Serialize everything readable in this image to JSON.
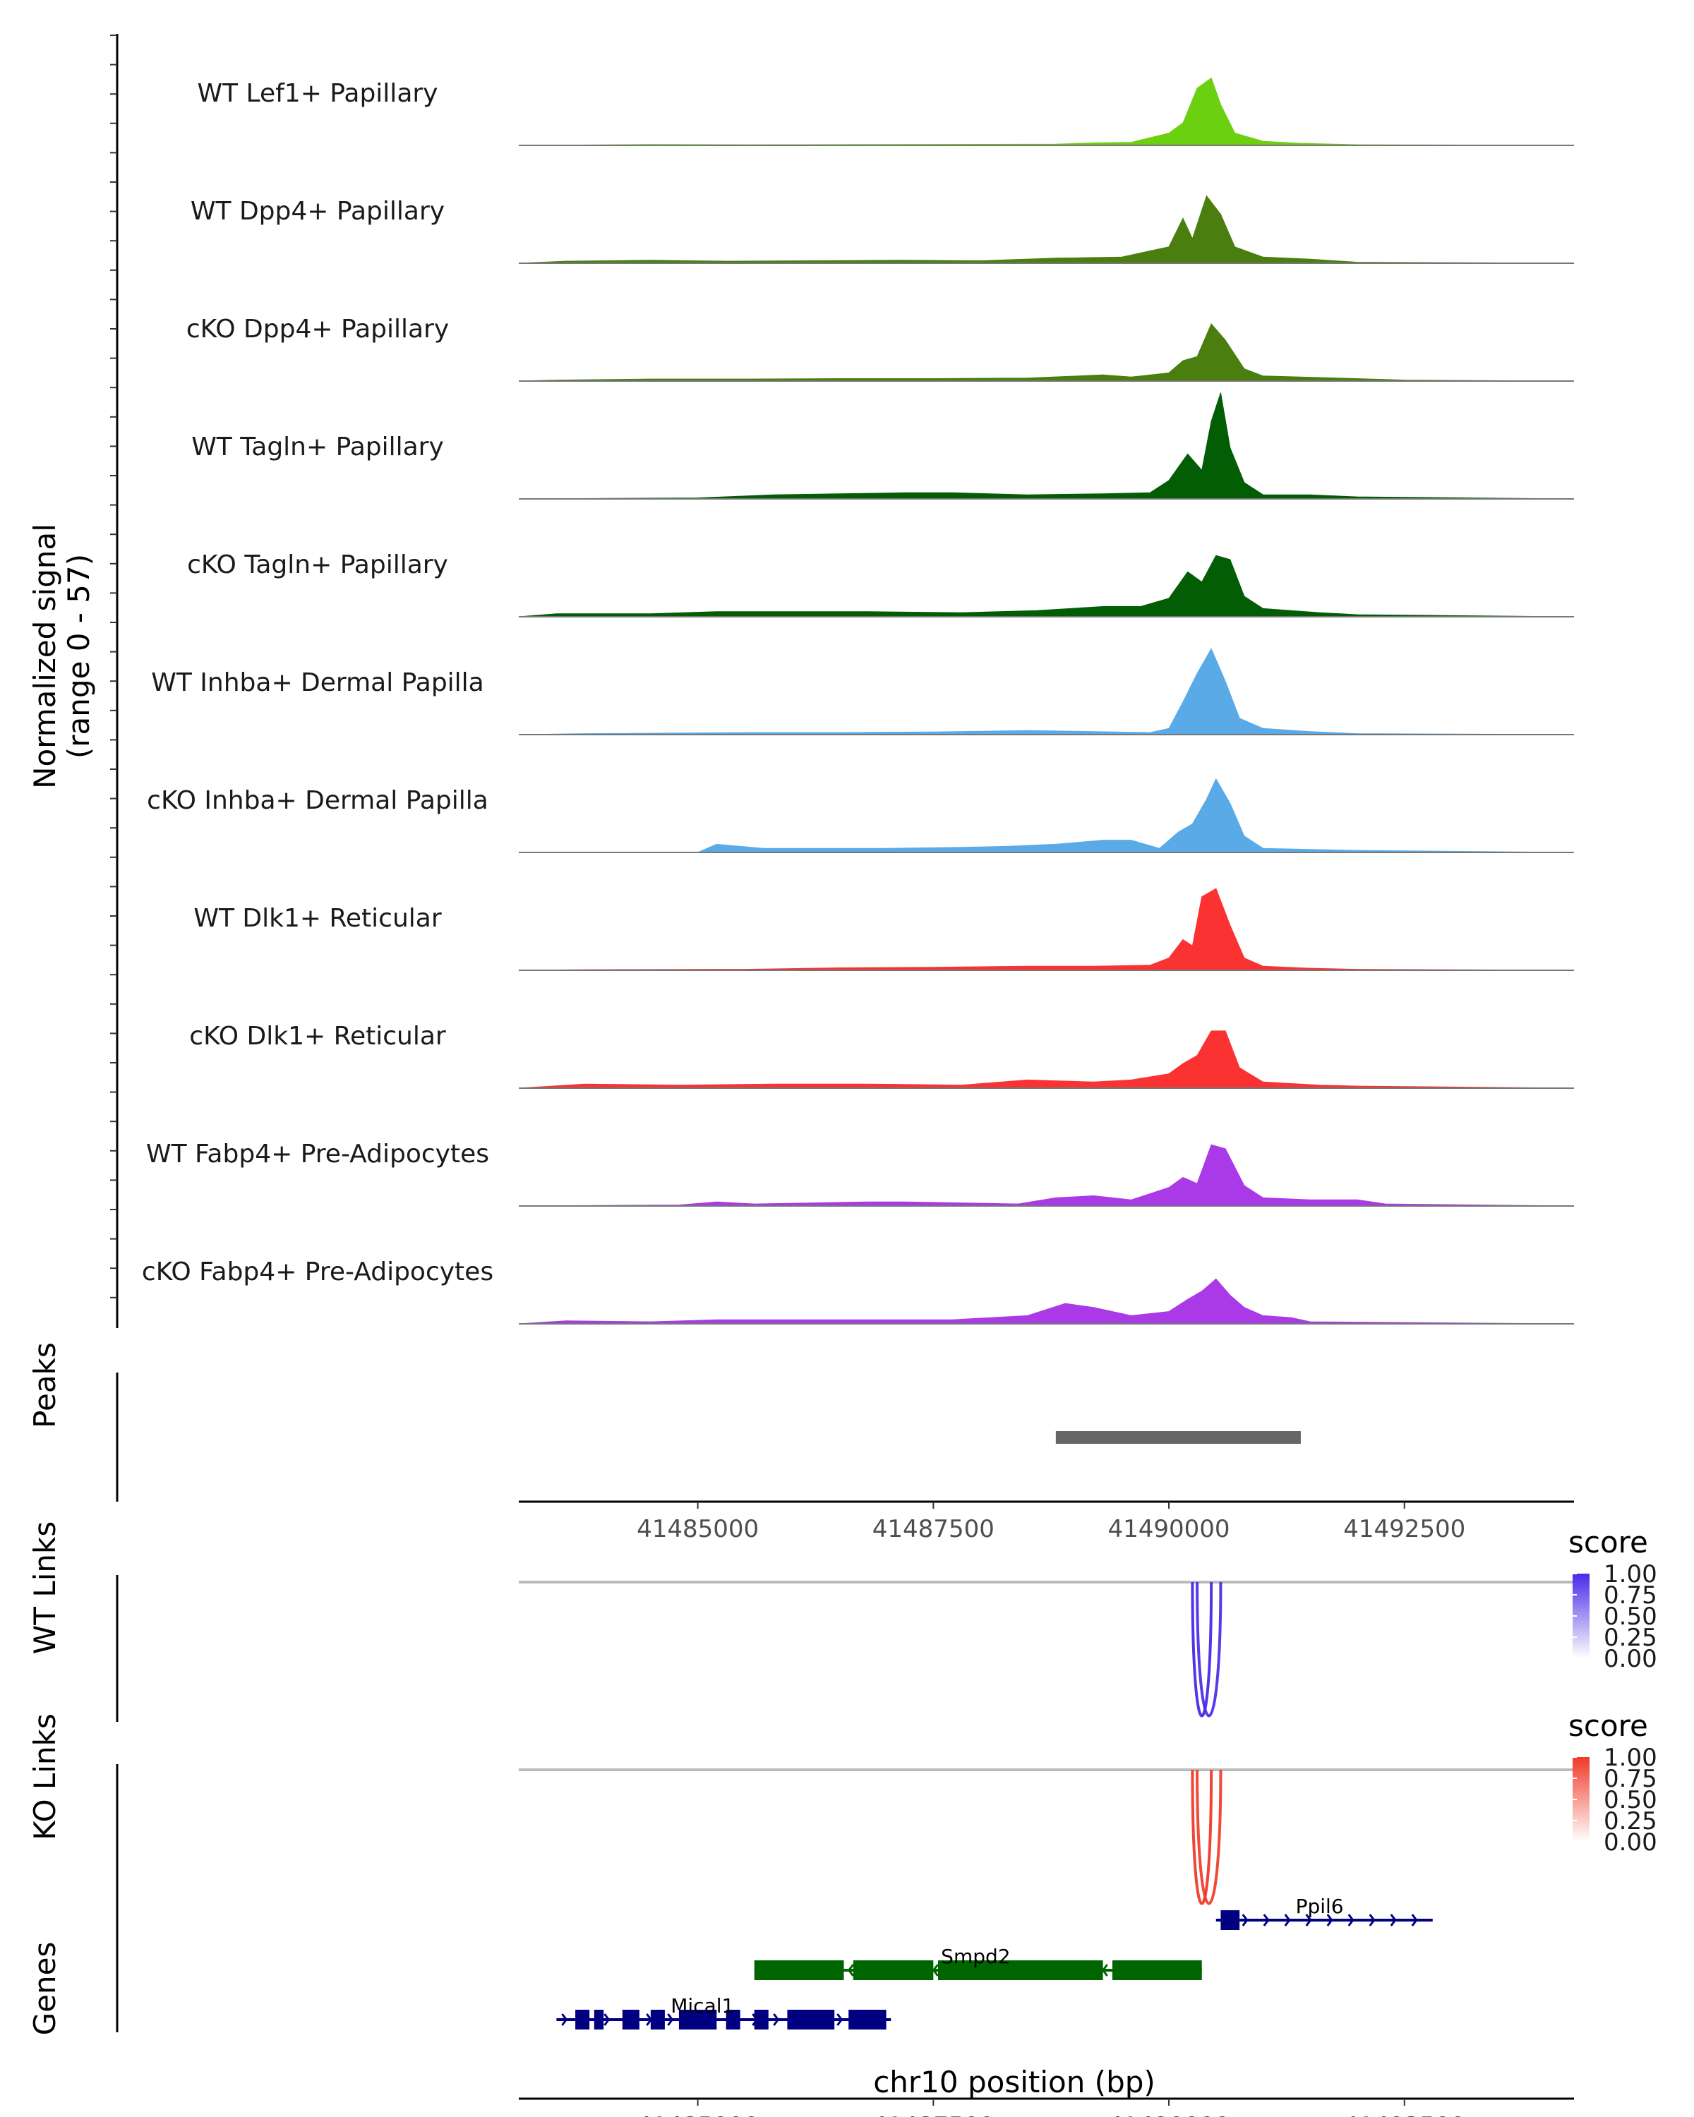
{
  "chart_data": {
    "type": "area",
    "region": "chr10",
    "x_range": [
      41483100,
      41494300
    ],
    "xlabel": "chr10 position (bp)",
    "x_ticks": [
      {
        "value": 41485000,
        "label": "41485000"
      },
      {
        "value": 41487500,
        "label": "41487500"
      },
      {
        "value": 41490000,
        "label": "41490000"
      },
      {
        "value": 41492500,
        "label": "41492500"
      }
    ],
    "coverage_ylabel_line1": "Normalized signal",
    "coverage_ylabel_line2": "(range 0 - 57)",
    "y_range": [
      0,
      57
    ],
    "tracks": [
      {
        "name": "WT Lef1+ Papillary",
        "color": "#6ad010",
        "points": [
          [
            41483100,
            0
          ],
          [
            41484500,
            0.4
          ],
          [
            41485500,
            0.3
          ],
          [
            41487000,
            0.4
          ],
          [
            41488800,
            0.6
          ],
          [
            41489200,
            1.2
          ],
          [
            41489600,
            1.5
          ],
          [
            41490000,
            6
          ],
          [
            41490150,
            11
          ],
          [
            41490300,
            28
          ],
          [
            41490450,
            33
          ],
          [
            41490550,
            20
          ],
          [
            41490700,
            6
          ],
          [
            41491000,
            2
          ],
          [
            41491400,
            1
          ],
          [
            41492000,
            0.3
          ],
          [
            41494300,
            0
          ]
        ]
      },
      {
        "name": "WT Dpp4+ Papillary",
        "color": "#4a7f10",
        "points": [
          [
            41483100,
            0
          ],
          [
            41483600,
            1
          ],
          [
            41484500,
            1.5
          ],
          [
            41485300,
            1
          ],
          [
            41486500,
            1.3
          ],
          [
            41487200,
            1.5
          ],
          [
            41488000,
            1.2
          ],
          [
            41488800,
            2.5
          ],
          [
            41489500,
            3
          ],
          [
            41490000,
            8
          ],
          [
            41490150,
            22
          ],
          [
            41490250,
            12
          ],
          [
            41490400,
            33
          ],
          [
            41490550,
            24
          ],
          [
            41490700,
            8
          ],
          [
            41491000,
            3
          ],
          [
            41491500,
            2
          ],
          [
            41492000,
            0.5
          ],
          [
            41494300,
            0
          ]
        ]
      },
      {
        "name": "cKO Dpp4+ Papillary",
        "color": "#4a7f10",
        "points": [
          [
            41483100,
            0
          ],
          [
            41483500,
            0.5
          ],
          [
            41484500,
            1
          ],
          [
            41485500,
            1
          ],
          [
            41486500,
            1.2
          ],
          [
            41487500,
            1.2
          ],
          [
            41488500,
            1.5
          ],
          [
            41489300,
            3
          ],
          [
            41489600,
            2
          ],
          [
            41490000,
            4
          ],
          [
            41490150,
            10
          ],
          [
            41490300,
            12
          ],
          [
            41490450,
            28
          ],
          [
            41490600,
            20
          ],
          [
            41490800,
            6
          ],
          [
            41491000,
            2.5
          ],
          [
            41491800,
            1.5
          ],
          [
            41492500,
            0.5
          ],
          [
            41494300,
            0
          ]
        ]
      },
      {
        "name": "WT Tagln+ Papillary",
        "color": "#035d05",
        "points": [
          [
            41483100,
            0
          ],
          [
            41485000,
            0.5
          ],
          [
            41485800,
            2
          ],
          [
            41486500,
            2.5
          ],
          [
            41487200,
            3
          ],
          [
            41487700,
            3
          ],
          [
            41488500,
            2
          ],
          [
            41489300,
            2.5
          ],
          [
            41489800,
            3
          ],
          [
            41490000,
            9
          ],
          [
            41490200,
            22
          ],
          [
            41490350,
            14
          ],
          [
            41490450,
            38
          ],
          [
            41490550,
            52
          ],
          [
            41490650,
            25
          ],
          [
            41490800,
            8
          ],
          [
            41491000,
            2
          ],
          [
            41491500,
            2
          ],
          [
            41492000,
            1
          ],
          [
            41494300,
            0
          ]
        ]
      },
      {
        "name": "cKO Tagln+ Papillary",
        "color": "#035d05",
        "points": [
          [
            41483100,
            0
          ],
          [
            41483500,
            1.5
          ],
          [
            41484500,
            1.5
          ],
          [
            41485200,
            2.5
          ],
          [
            41486000,
            2.5
          ],
          [
            41486800,
            2.5
          ],
          [
            41487800,
            2
          ],
          [
            41488600,
            3
          ],
          [
            41489300,
            5
          ],
          [
            41489700,
            5
          ],
          [
            41490000,
            9
          ],
          [
            41490200,
            22
          ],
          [
            41490350,
            17
          ],
          [
            41490500,
            30
          ],
          [
            41490650,
            28
          ],
          [
            41490800,
            10
          ],
          [
            41491000,
            4
          ],
          [
            41491600,
            2
          ],
          [
            41492000,
            1
          ],
          [
            41494300,
            0
          ]
        ]
      },
      {
        "name": "WT Inhba+ Dermal Papilla",
        "color": "#5aaae8",
        "points": [
          [
            41483100,
            0
          ],
          [
            41483800,
            0.5
          ],
          [
            41485500,
            1
          ],
          [
            41486500,
            1
          ],
          [
            41487500,
            1.3
          ],
          [
            41488500,
            2
          ],
          [
            41489200,
            1.5
          ],
          [
            41489800,
            1
          ],
          [
            41490000,
            3
          ],
          [
            41490150,
            16
          ],
          [
            41490300,
            30
          ],
          [
            41490450,
            42
          ],
          [
            41490600,
            26
          ],
          [
            41490750,
            8
          ],
          [
            41491000,
            3
          ],
          [
            41491500,
            1.5
          ],
          [
            41492000,
            0.5
          ],
          [
            41494300,
            0
          ]
        ]
      },
      {
        "name": "cKO Inhba+ Dermal Papilla",
        "color": "#5aaae8",
        "points": [
          [
            41483100,
            0
          ],
          [
            41485000,
            0
          ],
          [
            41485200,
            4
          ],
          [
            41485700,
            2
          ],
          [
            41486500,
            2
          ],
          [
            41487000,
            2
          ],
          [
            41487800,
            2.5
          ],
          [
            41488300,
            3
          ],
          [
            41488800,
            4
          ],
          [
            41489300,
            6
          ],
          [
            41489600,
            6
          ],
          [
            41489900,
            2
          ],
          [
            41490100,
            10
          ],
          [
            41490250,
            14
          ],
          [
            41490400,
            26
          ],
          [
            41490500,
            36
          ],
          [
            41490650,
            24
          ],
          [
            41490800,
            8
          ],
          [
            41491000,
            2
          ],
          [
            41491500,
            1.5
          ],
          [
            41492000,
            1
          ],
          [
            41494300,
            0
          ]
        ]
      },
      {
        "name": "WT Dlk1+ Reticular",
        "color": "#fa3232",
        "points": [
          [
            41483100,
            0
          ],
          [
            41483800,
            0.3
          ],
          [
            41485500,
            0.5
          ],
          [
            41486500,
            1.2
          ],
          [
            41487500,
            1.5
          ],
          [
            41488500,
            2
          ],
          [
            41489200,
            2
          ],
          [
            41489800,
            2.5
          ],
          [
            41490000,
            6
          ],
          [
            41490150,
            15
          ],
          [
            41490250,
            12
          ],
          [
            41490350,
            36
          ],
          [
            41490500,
            40
          ],
          [
            41490650,
            22
          ],
          [
            41490800,
            6
          ],
          [
            41491000,
            2
          ],
          [
            41491500,
            1
          ],
          [
            41492000,
            0.5
          ],
          [
            41494300,
            0
          ]
        ]
      },
      {
        "name": "cKO Dlk1+ Reticular",
        "color": "#fa3232",
        "points": [
          [
            41483100,
            0
          ],
          [
            41483800,
            2
          ],
          [
            41484800,
            1.5
          ],
          [
            41485800,
            2
          ],
          [
            41486800,
            2
          ],
          [
            41487800,
            1.5
          ],
          [
            41488500,
            4
          ],
          [
            41489200,
            3
          ],
          [
            41489600,
            4
          ],
          [
            41490000,
            7
          ],
          [
            41490150,
            12
          ],
          [
            41490300,
            16
          ],
          [
            41490450,
            28
          ],
          [
            41490600,
            28
          ],
          [
            41490750,
            10
          ],
          [
            41491000,
            3
          ],
          [
            41491600,
            1.5
          ],
          [
            41492000,
            1
          ],
          [
            41494300,
            0
          ]
        ]
      },
      {
        "name": "WT Fabp4+ Pre-Adipocytes",
        "color": "#aa3ae8",
        "points": [
          [
            41483100,
            0
          ],
          [
            41484800,
            0.5
          ],
          [
            41485200,
            2
          ],
          [
            41485600,
            1
          ],
          [
            41486800,
            2
          ],
          [
            41487200,
            2
          ],
          [
            41488400,
            1
          ],
          [
            41488800,
            4
          ],
          [
            41489200,
            5
          ],
          [
            41489600,
            3
          ],
          [
            41490000,
            9
          ],
          [
            41490150,
            14
          ],
          [
            41490300,
            11
          ],
          [
            41490450,
            30
          ],
          [
            41490600,
            28
          ],
          [
            41490800,
            10
          ],
          [
            41491000,
            4
          ],
          [
            41491500,
            3
          ],
          [
            41492000,
            3
          ],
          [
            41492300,
            1
          ],
          [
            41494300,
            0
          ]
        ]
      },
      {
        "name": "cKO Fabp4+ Pre-Adipocytes",
        "color": "#aa3ae8",
        "points": [
          [
            41483100,
            0
          ],
          [
            41483600,
            1.5
          ],
          [
            41484500,
            1
          ],
          [
            41485200,
            2
          ],
          [
            41485800,
            2
          ],
          [
            41486800,
            2
          ],
          [
            41487700,
            2
          ],
          [
            41488500,
            4
          ],
          [
            41488900,
            10
          ],
          [
            41489200,
            8
          ],
          [
            41489600,
            4
          ],
          [
            41490000,
            6
          ],
          [
            41490200,
            12
          ],
          [
            41490350,
            16
          ],
          [
            41490500,
            22
          ],
          [
            41490650,
            14
          ],
          [
            41490800,
            8
          ],
          [
            41491000,
            4
          ],
          [
            41491300,
            3
          ],
          [
            41491500,
            1
          ],
          [
            41494300,
            0
          ]
        ]
      }
    ],
    "peaks_label": "Peaks",
    "peaks": [
      {
        "start": 41488800,
        "end": 41491400
      }
    ],
    "wt_links_label": "WT Links",
    "ko_links_label": "KO Links",
    "wt_links": [
      {
        "start": 41490250,
        "end": 41490450,
        "score": 0.9
      },
      {
        "start": 41490300,
        "end": 41490550,
        "score": 0.85
      }
    ],
    "ko_links": [
      {
        "start": 41490250,
        "end": 41490450,
        "score": 0.9
      },
      {
        "start": 41490300,
        "end": 41490550,
        "score": 0.85
      }
    ],
    "score_legend_title": "score",
    "score_legend_ticks": [
      "1.00",
      "0.75",
      "0.50",
      "0.25",
      "0.00"
    ],
    "wt_link_color": "#4a2ae8",
    "ko_link_color": "#f03a2a",
    "genes_label": "Genes",
    "genes": [
      {
        "name": "Ppil6",
        "strand": "+",
        "color": "#000080",
        "row": 0,
        "start": 41490500,
        "end": 41492800,
        "label_pos": 41491600,
        "exons": [
          [
            41490550,
            41490750
          ]
        ]
      },
      {
        "name": "Smpd2",
        "strand": "-",
        "color": "#006400",
        "row": 1,
        "start": 41485600,
        "end": 41490350,
        "label_pos": 41487950,
        "exons": [
          [
            41485600,
            41486550
          ],
          [
            41486650,
            41487500
          ],
          [
            41487550,
            41489300
          ],
          [
            41489400,
            41490350
          ]
        ]
      },
      {
        "name": "Mical1",
        "strand": "+",
        "color": "#000080",
        "row": 2,
        "start": 41483500,
        "end": 41487050,
        "label_pos": 41485050,
        "exons": [
          [
            41483700,
            41483850
          ],
          [
            41483900,
            41484000
          ],
          [
            41484200,
            41484380
          ],
          [
            41484500,
            41484650
          ],
          [
            41484800,
            41485200
          ],
          [
            41485300,
            41485450
          ],
          [
            41485600,
            41485750
          ],
          [
            41485950,
            41486450
          ],
          [
            41486600,
            41487000
          ]
        ]
      }
    ]
  }
}
